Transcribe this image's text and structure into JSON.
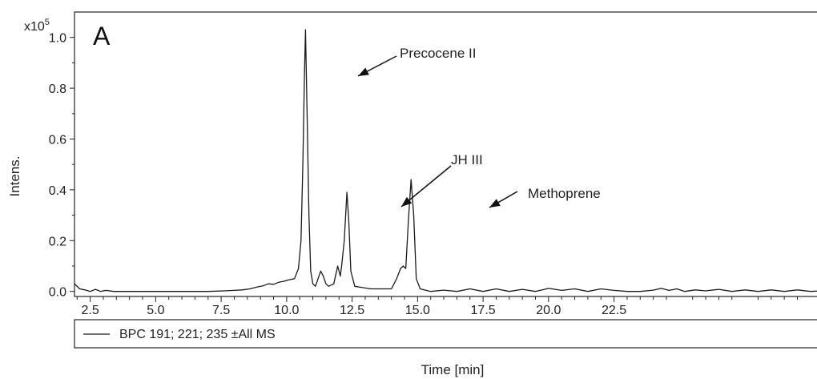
{
  "chart_data": {
    "type": "line",
    "panel_label": "A",
    "xlabel": "Time [min]",
    "ylabel": "Intens.",
    "y_multiplier": "x10",
    "y_multiplier_exp": "5",
    "xlim": [
      1.9,
      30.8
    ],
    "ylim": [
      -0.02,
      1.1
    ],
    "x_ticks": [
      "2.5",
      "5.0",
      "7.5",
      "10.0",
      "12.5",
      "15.0",
      "17.5",
      "20.0",
      "22.5"
    ],
    "y_ticks": [
      "0.0",
      "0.2",
      "0.4",
      "0.6",
      "0.8",
      "1.0"
    ],
    "series": [
      {
        "name": "BPC 191; 221; 235 ±All MS",
        "color": "#1a1a1a",
        "points": [
          [
            1.9,
            0.03
          ],
          [
            2.1,
            0.01
          ],
          [
            2.3,
            0.006
          ],
          [
            2.5,
            0.0
          ],
          [
            2.7,
            0.008
          ],
          [
            2.9,
            0.0
          ],
          [
            3.1,
            0.004
          ],
          [
            3.4,
            0.0
          ],
          [
            4.0,
            0.0
          ],
          [
            5.0,
            0.0
          ],
          [
            6.0,
            0.0
          ],
          [
            7.0,
            0.0
          ],
          [
            7.6,
            0.002
          ],
          [
            8.0,
            0.004
          ],
          [
            8.3,
            0.006
          ],
          [
            8.6,
            0.01
          ],
          [
            8.9,
            0.018
          ],
          [
            9.1,
            0.022
          ],
          [
            9.3,
            0.03
          ],
          [
            9.5,
            0.028
          ],
          [
            9.7,
            0.036
          ],
          [
            9.9,
            0.04
          ],
          [
            10.1,
            0.046
          ],
          [
            10.3,
            0.05
          ],
          [
            10.45,
            0.09
          ],
          [
            10.55,
            0.2
          ],
          [
            10.62,
            0.5
          ],
          [
            10.68,
            0.85
          ],
          [
            10.72,
            1.03
          ],
          [
            10.78,
            0.7
          ],
          [
            10.85,
            0.3
          ],
          [
            10.92,
            0.08
          ],
          [
            11.0,
            0.03
          ],
          [
            11.1,
            0.02
          ],
          [
            11.2,
            0.05
          ],
          [
            11.3,
            0.08
          ],
          [
            11.4,
            0.06
          ],
          [
            11.5,
            0.03
          ],
          [
            11.6,
            0.02
          ],
          [
            11.8,
            0.03
          ],
          [
            11.95,
            0.1
          ],
          [
            12.05,
            0.06
          ],
          [
            12.1,
            0.1
          ],
          [
            12.2,
            0.2
          ],
          [
            12.3,
            0.39
          ],
          [
            12.37,
            0.28
          ],
          [
            12.45,
            0.08
          ],
          [
            12.6,
            0.02
          ],
          [
            12.9,
            0.015
          ],
          [
            13.2,
            0.01
          ],
          [
            13.6,
            0.01
          ],
          [
            14.0,
            0.01
          ],
          [
            14.2,
            0.05
          ],
          [
            14.35,
            0.09
          ],
          [
            14.45,
            0.1
          ],
          [
            14.55,
            0.09
          ],
          [
            14.65,
            0.28
          ],
          [
            14.75,
            0.44
          ],
          [
            14.85,
            0.3
          ],
          [
            14.95,
            0.05
          ],
          [
            15.1,
            0.01
          ],
          [
            15.5,
            0.0
          ],
          [
            16.0,
            0.005
          ],
          [
            16.5,
            0.0
          ],
          [
            17.0,
            0.01
          ],
          [
            17.5,
            0.0
          ],
          [
            18.0,
            0.01
          ],
          [
            18.5,
            0.0
          ],
          [
            19.0,
            0.008
          ],
          [
            19.5,
            0.0
          ],
          [
            20.0,
            0.012
          ],
          [
            20.5,
            0.004
          ],
          [
            21.0,
            0.01
          ],
          [
            21.5,
            0.0
          ],
          [
            22.0,
            0.01
          ],
          [
            22.5,
            0.004
          ],
          [
            23.0,
            0.0
          ],
          [
            23.5,
            0.0
          ],
          [
            24.0,
            0.005
          ],
          [
            24.3,
            0.012
          ],
          [
            24.6,
            0.004
          ],
          [
            24.9,
            0.01
          ],
          [
            25.2,
            0.0
          ],
          [
            25.6,
            0.006
          ],
          [
            26.0,
            0.002
          ],
          [
            26.5,
            0.008
          ],
          [
            27.0,
            0.0
          ],
          [
            27.5,
            0.006
          ],
          [
            28.0,
            0.0
          ],
          [
            28.5,
            0.006
          ],
          [
            29.0,
            0.0
          ],
          [
            29.5,
            0.006
          ],
          [
            30.0,
            0.0
          ],
          [
            30.8,
            0.004
          ]
        ]
      }
    ],
    "annotations": [
      {
        "text": "Precocene II",
        "x": 10.72,
        "y": 1.03
      },
      {
        "text": "JH III",
        "x": 12.3,
        "y": 0.39
      },
      {
        "text": "Methoprene",
        "x": 14.75,
        "y": 0.44
      }
    ],
    "legend": "bottom",
    "grid": false
  }
}
